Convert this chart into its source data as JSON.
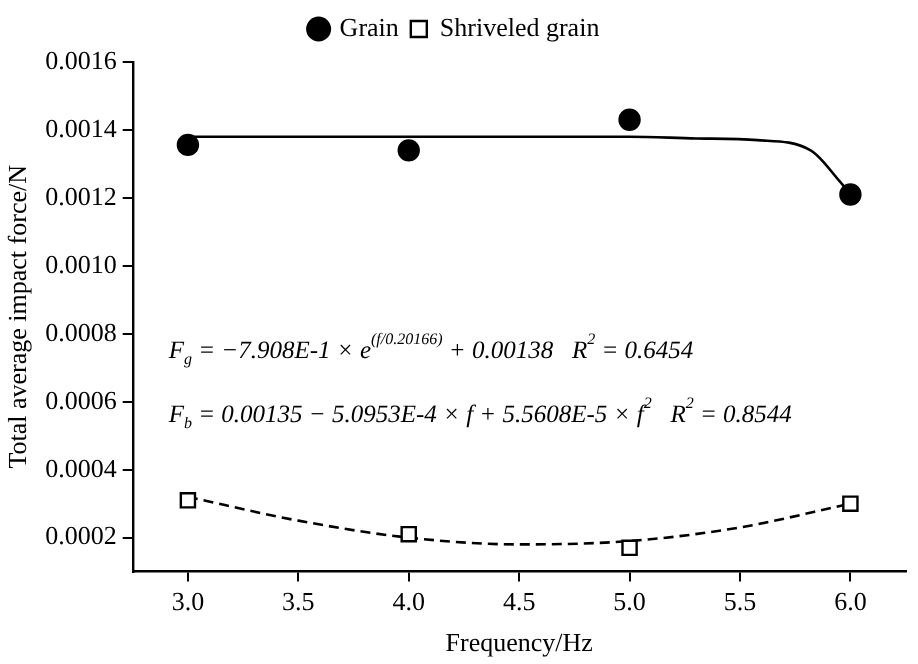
{
  "chart_data": {
    "type": "scatter",
    "xlabel": "Frequency/Hz",
    "ylabel": "Total average impact force/N",
    "xlim": [
      2.75,
      6.25
    ],
    "ylim": [
      0.0001,
      0.0016
    ],
    "xticks": [
      {
        "value": 3,
        "label": "3.0"
      },
      {
        "value": 3.5,
        "label": "3.5"
      },
      {
        "value": 4,
        "label": "4.0"
      },
      {
        "value": 4.5,
        "label": "4.5"
      },
      {
        "value": 5,
        "label": "5.0"
      },
      {
        "value": 5.5,
        "label": "5.5"
      },
      {
        "value": 6,
        "label": "6.0"
      }
    ],
    "yticks": [
      {
        "value": 0.0002,
        "label": "0.0002"
      },
      {
        "value": 0.0004,
        "label": "0.0004"
      },
      {
        "value": 0.0006,
        "label": "0.0006"
      },
      {
        "value": 0.0008,
        "label": "0.0008"
      },
      {
        "value": 0.001,
        "label": "0.0010"
      },
      {
        "value": 0.0012,
        "label": "0.0012"
      },
      {
        "value": 0.0014,
        "label": "0.0014"
      },
      {
        "value": 0.0016,
        "label": "0.0016"
      }
    ],
    "grid": false,
    "legend": "top",
    "series": [
      {
        "name": "Grain",
        "marker": "circle",
        "color": "#000000",
        "x": [
          3,
          4,
          5,
          6
        ],
        "values": [
          0.001356,
          0.00134,
          0.00143,
          0.00121
        ]
      },
      {
        "name": "Shriveled grain",
        "marker": "square",
        "color": "#000000",
        "x": [
          3,
          4,
          5,
          6
        ],
        "values": [
          0.00031,
          0.00021,
          0.00017,
          0.0003
        ]
      },
      {
        "type": "line",
        "marker": "none",
        "line_style": "solid",
        "color": "#000000",
        "x": [
          3,
          4,
          5,
          5.3,
          5.58,
          5.82,
          5.95,
          6
        ],
        "values": [
          0.00138,
          0.00138,
          0.00138,
          0.001375,
          0.00137,
          0.00134,
          0.00125,
          0.00121
        ]
      },
      {
        "type": "line",
        "marker": "none",
        "line_style": "dashed",
        "color": "#000000",
        "x": [
          3,
          3.5,
          4,
          4.5,
          5,
          5.5,
          6
        ],
        "values": [
          0.00032,
          0.00025,
          0.0002,
          0.00018,
          0.00019,
          0.00023,
          0.0003
        ]
      }
    ],
    "annotations": [
      "F$_{g}$ = −7.908E-1 × e$^{(f/0.20166)}$ + 0.00138   R$^{2}$ = 0.6454",
      "F$_{b}$ = 0.00135 − 5.0953E-4 × f + 5.5608E-5 × f$^{2}$   R$^{2}$ = 0.8544"
    ]
  }
}
